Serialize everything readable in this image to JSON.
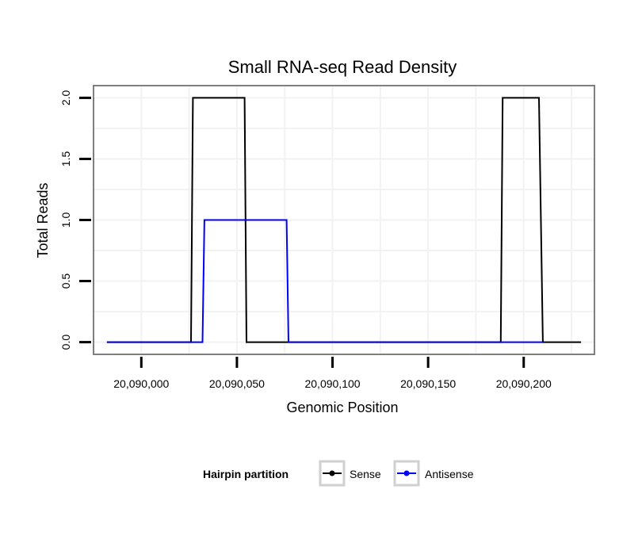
{
  "chart_data": {
    "type": "line",
    "title": "Small RNA-seq Read Density",
    "xlabel": "Genomic Position",
    "ylabel": "Total Reads",
    "xlim": [
      20089975,
      20090237
    ],
    "ylim": [
      -0.1,
      2.1
    ],
    "xticks": [
      20090000,
      20090050,
      20090100,
      20090150,
      20090200
    ],
    "xtick_labels": [
      "20,090,000",
      "20,090,050",
      "20,090,100",
      "20,090,150",
      "20,090,200"
    ],
    "yticks": [
      0,
      0.5,
      1,
      1.5,
      2
    ],
    "ytick_labels": [
      "0.0",
      "0.5",
      "1.0",
      "1.5",
      "2.0"
    ],
    "grid": true,
    "legend": {
      "title": "Hairpin partition",
      "placement": "bottom",
      "entries": [
        "Sense",
        "Antisense"
      ]
    },
    "series": [
      {
        "name": "Sense",
        "color": "#000000",
        "x": [
          20089982,
          20090026,
          20090027,
          20090054,
          20090055,
          20090188,
          20090189,
          20090208,
          20090210,
          20090230
        ],
        "y": [
          0,
          0,
          2,
          2,
          0,
          0,
          2,
          2,
          0,
          0
        ]
      },
      {
        "name": "Antisense",
        "color": "#0000ff",
        "x": [
          20089982,
          20090032,
          20090033,
          20090076,
          20090077,
          20090210
        ],
        "y": [
          0,
          0,
          1,
          1,
          0,
          0
        ]
      }
    ]
  }
}
